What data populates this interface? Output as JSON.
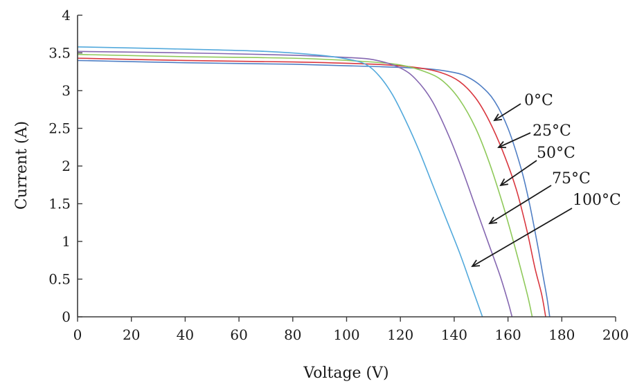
{
  "chart_data": {
    "type": "line",
    "xlabel": "Voltage (V)",
    "ylabel": "Current (A)",
    "xlim": [
      0,
      200
    ],
    "ylim": [
      0,
      4
    ],
    "xticks": [
      0,
      20,
      40,
      60,
      80,
      100,
      120,
      140,
      160,
      180,
      200
    ],
    "yticks": [
      0,
      0.5,
      1,
      1.5,
      2,
      2.5,
      3,
      3.5,
      4
    ],
    "ytick_labels": [
      "0",
      "0.5",
      "1",
      "1.5",
      "2",
      "2.5",
      "3",
      "3.5",
      "4"
    ],
    "grid": false,
    "series": [
      {
        "name": "0°C",
        "color": "#4f7ec4",
        "points": [
          [
            0,
            3.4
          ],
          [
            40,
            3.37
          ],
          [
            80,
            3.35
          ],
          [
            110,
            3.32
          ],
          [
            130,
            3.29
          ],
          [
            140,
            3.24
          ],
          [
            145,
            3.18
          ],
          [
            150,
            3.06
          ],
          [
            155,
            2.86
          ],
          [
            160,
            2.5
          ],
          [
            165,
            1.95
          ],
          [
            168,
            1.5
          ],
          [
            171,
            0.95
          ],
          [
            173,
            0.55
          ],
          [
            174.5,
            0.25
          ],
          [
            175.5,
            0
          ]
        ]
      },
      {
        "name": "25°C",
        "color": "#d9363e",
        "points": [
          [
            0,
            3.43
          ],
          [
            40,
            3.4
          ],
          [
            80,
            3.38
          ],
          [
            110,
            3.35
          ],
          [
            125,
            3.31
          ],
          [
            135,
            3.24
          ],
          [
            142,
            3.12
          ],
          [
            148,
            2.9
          ],
          [
            153,
            2.6
          ],
          [
            158,
            2.2
          ],
          [
            163,
            1.7
          ],
          [
            167,
            1.15
          ],
          [
            170,
            0.65
          ],
          [
            172.5,
            0.3
          ],
          [
            174,
            0
          ]
        ]
      },
      {
        "name": "50°C",
        "color": "#8fc95a",
        "points": [
          [
            0,
            3.48
          ],
          [
            40,
            3.45
          ],
          [
            80,
            3.43
          ],
          [
            105,
            3.39
          ],
          [
            120,
            3.34
          ],
          [
            130,
            3.24
          ],
          [
            136,
            3.12
          ],
          [
            142,
            2.88
          ],
          [
            148,
            2.5
          ],
          [
            153,
            2.05
          ],
          [
            158,
            1.5
          ],
          [
            162,
            1.0
          ],
          [
            165,
            0.6
          ],
          [
            167.5,
            0.25
          ],
          [
            169,
            0
          ]
        ]
      },
      {
        "name": "75°C",
        "color": "#8466b0",
        "points": [
          [
            0,
            3.52
          ],
          [
            40,
            3.5
          ],
          [
            80,
            3.47
          ],
          [
            100,
            3.44
          ],
          [
            110,
            3.41
          ],
          [
            120,
            3.3
          ],
          [
            126,
            3.14
          ],
          [
            132,
            2.85
          ],
          [
            138,
            2.4
          ],
          [
            143,
            1.95
          ],
          [
            148,
            1.45
          ],
          [
            153,
            0.95
          ],
          [
            157,
            0.55
          ],
          [
            160,
            0.2
          ],
          [
            161.5,
            0
          ]
        ]
      },
      {
        "name": "100°C",
        "color": "#52a9dc",
        "points": [
          [
            0,
            3.58
          ],
          [
            40,
            3.55
          ],
          [
            70,
            3.52
          ],
          [
            90,
            3.47
          ],
          [
            100,
            3.42
          ],
          [
            107,
            3.35
          ],
          [
            112,
            3.2
          ],
          [
            117,
            2.95
          ],
          [
            122,
            2.6
          ],
          [
            127,
            2.2
          ],
          [
            132,
            1.75
          ],
          [
            137,
            1.3
          ],
          [
            142,
            0.85
          ],
          [
            146,
            0.45
          ],
          [
            149,
            0.15
          ],
          [
            150.5,
            0
          ]
        ]
      }
    ],
    "annotations": [
      {
        "text": "0°C",
        "series": "0°C"
      },
      {
        "text": "25°C",
        "series": "25°C"
      },
      {
        "text": "50°C",
        "series": "50°C"
      },
      {
        "text": "75°C",
        "series": "75°C"
      },
      {
        "text": "100°C",
        "series": "100°C"
      }
    ]
  }
}
